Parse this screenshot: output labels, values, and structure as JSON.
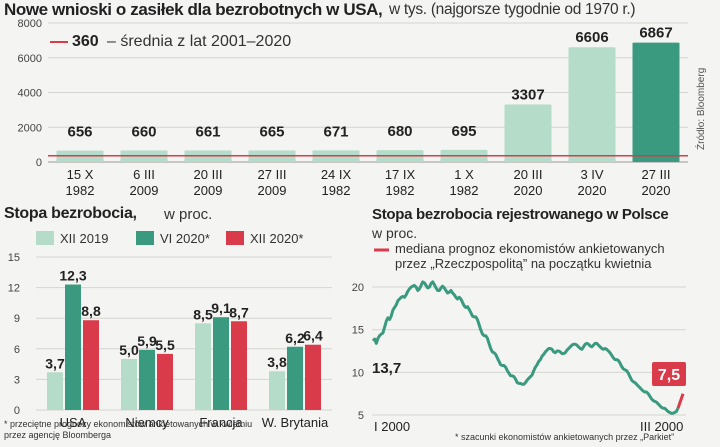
{
  "header": {
    "title": "Nowe wnioski o zasiłek dla bezrobotnych w USA,",
    "subtitle": "w tys. (najgorsze tygodnie od 1970 r.)"
  },
  "source_note": "Źródło: Bloomberg",
  "colors": {
    "bar_light": "#b5dcc9",
    "bar_dark": "#3a9a7f",
    "avg_red": "#d93b4a",
    "line_green": "#3a9a7f",
    "forecast_red": "#d93b4a",
    "label_dark": "#333333"
  },
  "chart_data": [
    {
      "type": "bar",
      "title": "Nowe wnioski o zasiłek dla bezrobotnych w USA, w tys. (najgorsze tygodnie od 1970 r.)",
      "categories": [
        [
          "15 X",
          "1982"
        ],
        [
          "6 III",
          "2009"
        ],
        [
          "20 III",
          "2009"
        ],
        [
          "27 III",
          "2009"
        ],
        [
          "24 IX",
          "1982"
        ],
        [
          "17 IX",
          "1982"
        ],
        [
          "1 X",
          "1982"
        ],
        [
          "20 III",
          "2020"
        ],
        [
          "3 IV",
          "2020"
        ],
        [
          "27 III",
          "2020"
        ]
      ],
      "values": [
        656,
        660,
        661,
        665,
        671,
        680,
        695,
        3307,
        6606,
        6867
      ],
      "value_labels": [
        "656",
        "660",
        "661",
        "665",
        "671",
        "680",
        "695",
        "3307",
        "6606",
        "6867"
      ],
      "ylim": [
        0,
        8000
      ],
      "yticks": [
        0,
        2000,
        4000,
        6000,
        8000
      ],
      "grid": true,
      "reference_line": {
        "value": 360,
        "label_value": "360",
        "label_text": "– średnia z lat 2001–2020"
      }
    },
    {
      "type": "bar",
      "title": "Stopa bezrobocia,",
      "title_unit": "w proc.",
      "categories": [
        "USA",
        "Niemcy",
        "Francja",
        "W. Brytania"
      ],
      "series": [
        {
          "name": "XII 2019",
          "values": [
            3.7,
            5.0,
            8.5,
            3.8
          ],
          "labels": [
            "3,7",
            "5,0",
            "8,5",
            "3,8"
          ]
        },
        {
          "name": "VI 2020*",
          "values": [
            12.3,
            5.9,
            9.1,
            6.2
          ],
          "labels": [
            "12,3",
            "5,9",
            "9,1",
            "6,2"
          ]
        },
        {
          "name": "XII 2020*",
          "values": [
            8.8,
            5.5,
            8.7,
            6.4
          ],
          "labels": [
            "8,8",
            "5,5",
            "8,7",
            "6,4"
          ]
        }
      ],
      "ylim": [
        0,
        15
      ],
      "yticks": [
        0,
        3,
        6,
        9,
        12,
        15
      ],
      "legend": "top",
      "footnote": [
        "* przeciętne prognozy ekonomistów ankietowanych w kwietniu",
        "przez agencję Bloomberga"
      ]
    },
    {
      "type": "line",
      "title": "Stopa bezrobocia rejestrowanego w Polsce",
      "title_unit": "w proc.",
      "ylim": [
        5,
        22
      ],
      "yticks": [
        5,
        10,
        15,
        20
      ],
      "x_labels": [
        "I 2000",
        "III 2000"
      ],
      "start_label": "13,7",
      "end_label": "7,5",
      "legend_line": [
        "mediana prognoz ekonomistów ankietowanych",
        "przez „Rzeczpospolitą” na początku kwietnia"
      ],
      "footnote": "* szacunki ekonomistów ankietowanych przez „Parkiet”",
      "series": [
        {
          "values": [
            13.7,
            13.9,
            13.4,
            14.0,
            14.3,
            14.5,
            14.6,
            15.3,
            16.0,
            16.4,
            16.2,
            16.6,
            17.3,
            17.6,
            17.9,
            18.4,
            18.6,
            18.8,
            18.9,
            18.8,
            19.1,
            19.5,
            19.8,
            20.0,
            20.1,
            20.2,
            20.0,
            19.6,
            19.8,
            20.2,
            20.6,
            20.5,
            20.2,
            19.9,
            20.0,
            20.4,
            20.6,
            20.3,
            19.9,
            19.6,
            19.6,
            19.9,
            20.1,
            19.9,
            19.6,
            19.3,
            19.4,
            19.6,
            19.3,
            19.1,
            18.8,
            18.6,
            18.8,
            18.6,
            18.2,
            17.8,
            17.6,
            17.7,
            17.4,
            17.0,
            16.6,
            16.5,
            16.5,
            16.2,
            15.6,
            15.0,
            14.5,
            14.3,
            14.3,
            14.0,
            13.4,
            12.8,
            12.4,
            12.3,
            12.1,
            11.7,
            11.3,
            10.9,
            10.8,
            10.8,
            10.6,
            10.2,
            9.9,
            9.6,
            9.6,
            9.5,
            9.2,
            8.8,
            8.7,
            8.7,
            8.6,
            8.6,
            8.8,
            9.1,
            9.3,
            9.5,
            9.7,
            10.2,
            10.6,
            10.9,
            11.3,
            11.5,
            11.9,
            12.1,
            12.4,
            12.6,
            12.8,
            12.8,
            12.7,
            12.4,
            12.3,
            12.5,
            12.5,
            12.4,
            12.2,
            12.2,
            12.3,
            12.6,
            12.8,
            13.0,
            13.2,
            13.3,
            13.3,
            13.2,
            13.0,
            12.8,
            12.7,
            13.0,
            13.3,
            13.4,
            13.3,
            13.1,
            13.0,
            13.2,
            13.4,
            13.4,
            13.2,
            13.0,
            12.8,
            12.7,
            12.8,
            12.7,
            12.5,
            12.3,
            12.0,
            11.7,
            11.5,
            11.5,
            11.4,
            11.1,
            10.7,
            10.4,
            10.3,
            10.2,
            9.9,
            9.5,
            9.1,
            8.9,
            8.8,
            8.6,
            8.4,
            8.2,
            8.0,
            7.8,
            7.7,
            7.7,
            7.5,
            7.2,
            6.9,
            6.7,
            6.6,
            6.5,
            6.3,
            6.1,
            5.9,
            5.8,
            5.8,
            5.6,
            5.4,
            5.3,
            5.2,
            5.2,
            5.3,
            5.4,
            5.8
          ]
        },
        {
          "values": [
            5.8,
            7.5
          ]
        }
      ]
    }
  ]
}
